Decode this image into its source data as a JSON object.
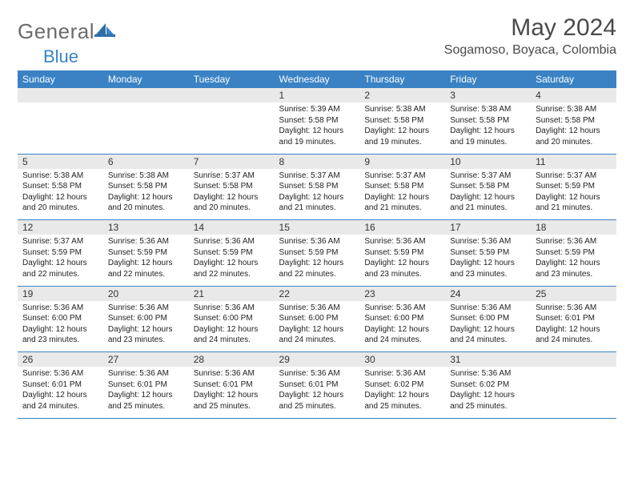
{
  "brand": {
    "part1": "General",
    "part2": "Blue"
  },
  "title": "May 2024",
  "location": "Sogamoso, Boyaca, Colombia",
  "colors": {
    "accent": "#3a82c4",
    "headerText": "#ffffff",
    "dayStrip": "#e9e9e9",
    "text": "#222222",
    "titleText": "#4a4a4a"
  },
  "weekdays": [
    "Sunday",
    "Monday",
    "Tuesday",
    "Wednesday",
    "Thursday",
    "Friday",
    "Saturday"
  ],
  "weeks": [
    [
      null,
      null,
      null,
      {
        "n": "1",
        "sr": "5:39 AM",
        "ss": "5:58 PM",
        "dl": "12 hours and 19 minutes."
      },
      {
        "n": "2",
        "sr": "5:38 AM",
        "ss": "5:58 PM",
        "dl": "12 hours and 19 minutes."
      },
      {
        "n": "3",
        "sr": "5:38 AM",
        "ss": "5:58 PM",
        "dl": "12 hours and 19 minutes."
      },
      {
        "n": "4",
        "sr": "5:38 AM",
        "ss": "5:58 PM",
        "dl": "12 hours and 20 minutes."
      }
    ],
    [
      {
        "n": "5",
        "sr": "5:38 AM",
        "ss": "5:58 PM",
        "dl": "12 hours and 20 minutes."
      },
      {
        "n": "6",
        "sr": "5:38 AM",
        "ss": "5:58 PM",
        "dl": "12 hours and 20 minutes."
      },
      {
        "n": "7",
        "sr": "5:37 AM",
        "ss": "5:58 PM",
        "dl": "12 hours and 20 minutes."
      },
      {
        "n": "8",
        "sr": "5:37 AM",
        "ss": "5:58 PM",
        "dl": "12 hours and 21 minutes."
      },
      {
        "n": "9",
        "sr": "5:37 AM",
        "ss": "5:58 PM",
        "dl": "12 hours and 21 minutes."
      },
      {
        "n": "10",
        "sr": "5:37 AM",
        "ss": "5:58 PM",
        "dl": "12 hours and 21 minutes."
      },
      {
        "n": "11",
        "sr": "5:37 AM",
        "ss": "5:59 PM",
        "dl": "12 hours and 21 minutes."
      }
    ],
    [
      {
        "n": "12",
        "sr": "5:37 AM",
        "ss": "5:59 PM",
        "dl": "12 hours and 22 minutes."
      },
      {
        "n": "13",
        "sr": "5:36 AM",
        "ss": "5:59 PM",
        "dl": "12 hours and 22 minutes."
      },
      {
        "n": "14",
        "sr": "5:36 AM",
        "ss": "5:59 PM",
        "dl": "12 hours and 22 minutes."
      },
      {
        "n": "15",
        "sr": "5:36 AM",
        "ss": "5:59 PM",
        "dl": "12 hours and 22 minutes."
      },
      {
        "n": "16",
        "sr": "5:36 AM",
        "ss": "5:59 PM",
        "dl": "12 hours and 23 minutes."
      },
      {
        "n": "17",
        "sr": "5:36 AM",
        "ss": "5:59 PM",
        "dl": "12 hours and 23 minutes."
      },
      {
        "n": "18",
        "sr": "5:36 AM",
        "ss": "5:59 PM",
        "dl": "12 hours and 23 minutes."
      }
    ],
    [
      {
        "n": "19",
        "sr": "5:36 AM",
        "ss": "6:00 PM",
        "dl": "12 hours and 23 minutes."
      },
      {
        "n": "20",
        "sr": "5:36 AM",
        "ss": "6:00 PM",
        "dl": "12 hours and 23 minutes."
      },
      {
        "n": "21",
        "sr": "5:36 AM",
        "ss": "6:00 PM",
        "dl": "12 hours and 24 minutes."
      },
      {
        "n": "22",
        "sr": "5:36 AM",
        "ss": "6:00 PM",
        "dl": "12 hours and 24 minutes."
      },
      {
        "n": "23",
        "sr": "5:36 AM",
        "ss": "6:00 PM",
        "dl": "12 hours and 24 minutes."
      },
      {
        "n": "24",
        "sr": "5:36 AM",
        "ss": "6:00 PM",
        "dl": "12 hours and 24 minutes."
      },
      {
        "n": "25",
        "sr": "5:36 AM",
        "ss": "6:01 PM",
        "dl": "12 hours and 24 minutes."
      }
    ],
    [
      {
        "n": "26",
        "sr": "5:36 AM",
        "ss": "6:01 PM",
        "dl": "12 hours and 24 minutes."
      },
      {
        "n": "27",
        "sr": "5:36 AM",
        "ss": "6:01 PM",
        "dl": "12 hours and 25 minutes."
      },
      {
        "n": "28",
        "sr": "5:36 AM",
        "ss": "6:01 PM",
        "dl": "12 hours and 25 minutes."
      },
      {
        "n": "29",
        "sr": "5:36 AM",
        "ss": "6:01 PM",
        "dl": "12 hours and 25 minutes."
      },
      {
        "n": "30",
        "sr": "5:36 AM",
        "ss": "6:02 PM",
        "dl": "12 hours and 25 minutes."
      },
      {
        "n": "31",
        "sr": "5:36 AM",
        "ss": "6:02 PM",
        "dl": "12 hours and 25 minutes."
      },
      null
    ]
  ],
  "labels": {
    "sunrise": "Sunrise: ",
    "sunset": "Sunset: ",
    "daylight": "Daylight: "
  }
}
